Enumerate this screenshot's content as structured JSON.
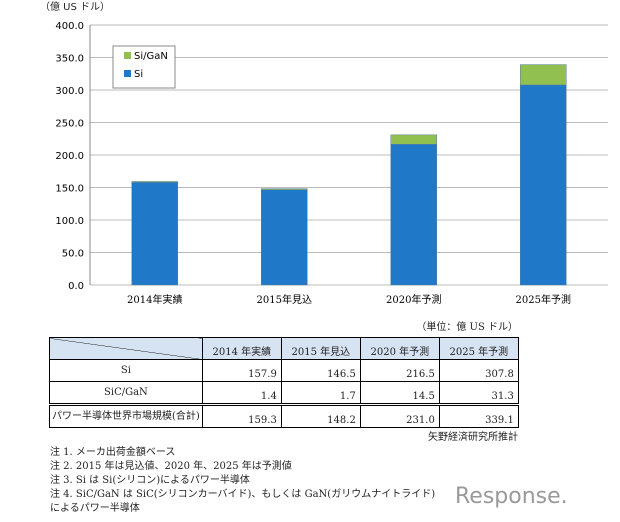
{
  "chart_data": {
    "type": "bar",
    "stacked": true,
    "ylabel": "（億 US ドル）",
    "ylim": [
      0,
      400
    ],
    "yticks": [
      "0.0",
      "50.0",
      "100.0",
      "150.0",
      "200.0",
      "250.0",
      "300.0",
      "350.0",
      "400.0"
    ],
    "grid": true,
    "legend_position": "top-left",
    "categories": [
      "2014年実績",
      "2015年見込",
      "2020年予測",
      "2025年予測"
    ],
    "series": [
      {
        "name": "Si",
        "values": [
          157.9,
          146.5,
          216.5,
          307.8
        ],
        "color": "#1f78c8"
      },
      {
        "name": "Si/GaN",
        "values": [
          1.4,
          1.7,
          14.5,
          31.3
        ],
        "color": "#92c050"
      }
    ]
  },
  "table": {
    "unit": "（単位：億 US ドル）",
    "headers": [
      "2014 年実績",
      "2015 年見込",
      "2020 年予測",
      "2025 年予測"
    ],
    "rows": [
      {
        "label": "Si",
        "values": [
          "157.9",
          "146.5",
          "216.5",
          "307.8"
        ]
      },
      {
        "label": "SiC/GaN",
        "values": [
          "1.4",
          "1.7",
          "14.5",
          "31.3"
        ]
      },
      {
        "label": "パワー半導体世界市場規模(合計)",
        "values": [
          "159.3",
          "148.2",
          "231.0",
          "339.1"
        ]
      }
    ],
    "source": "矢野経済研究所推計"
  },
  "notes": [
    "注 1. メーカ出荷金額ベース",
    "注 2. 2015 年は見込値、2020 年、2025 年は予測値",
    "注 3. Si は Si(シリコン)によるパワー半導体",
    "注 4. SiC/GaN は SiC(シリコンカーバイド)、もしくは GaN(ガリウムナイトライド)によるパワー半導体"
  ],
  "logo": "Response."
}
